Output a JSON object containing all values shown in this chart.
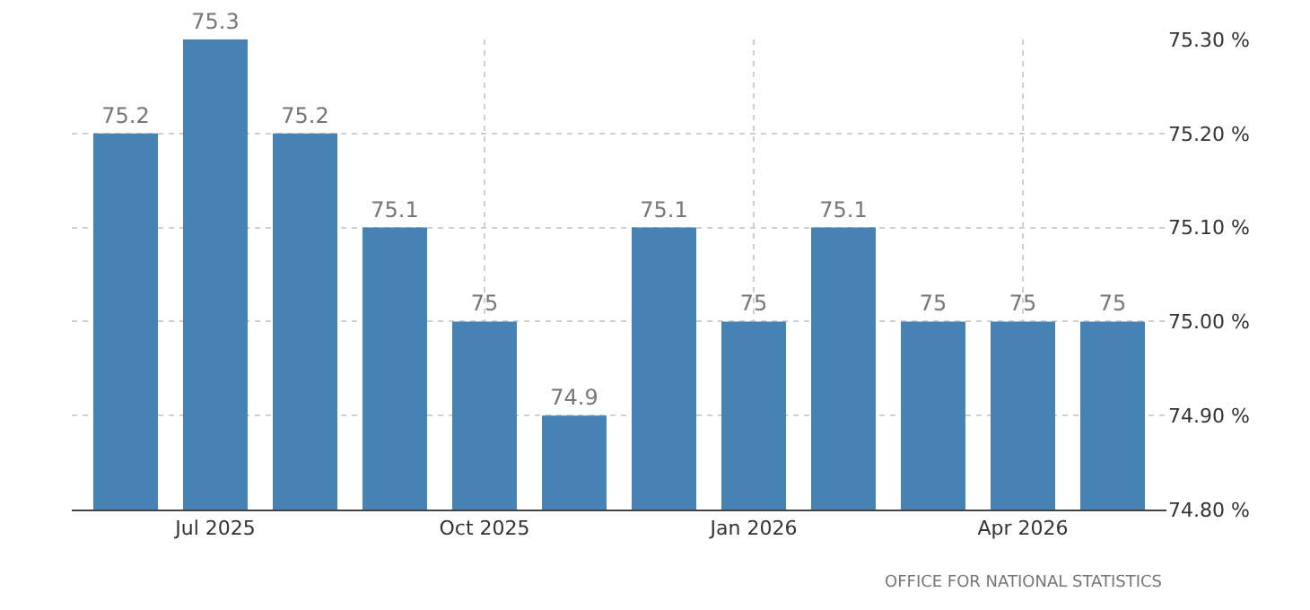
{
  "chart_data": {
    "type": "bar",
    "categories": [
      null,
      "Jul 2025",
      null,
      null,
      "Oct 2025",
      null,
      null,
      "Jan 2026",
      null,
      null,
      "Apr 2026",
      null
    ],
    "values": [
      75.2,
      75.3,
      75.2,
      75.1,
      75,
      74.9,
      75.1,
      75,
      75.1,
      75,
      75,
      75
    ],
    "color": "#4682b4",
    "ylim": [
      74.8,
      75.3
    ],
    "yticks": [
      {
        "value": 74.8,
        "label": "74.80 %"
      },
      {
        "value": 74.9,
        "label": "74.90 %"
      },
      {
        "value": 75.0,
        "label": "75.00 %"
      },
      {
        "value": 75.1,
        "label": "75.10 %"
      },
      {
        "value": 75.2,
        "label": "75.20 %"
      },
      {
        "value": 75.3,
        "label": "75.30 %"
      }
    ],
    "data_labels": true,
    "grid": true,
    "annotations": [
      "OFFICE FOR NATIONAL STATISTICS"
    ]
  }
}
